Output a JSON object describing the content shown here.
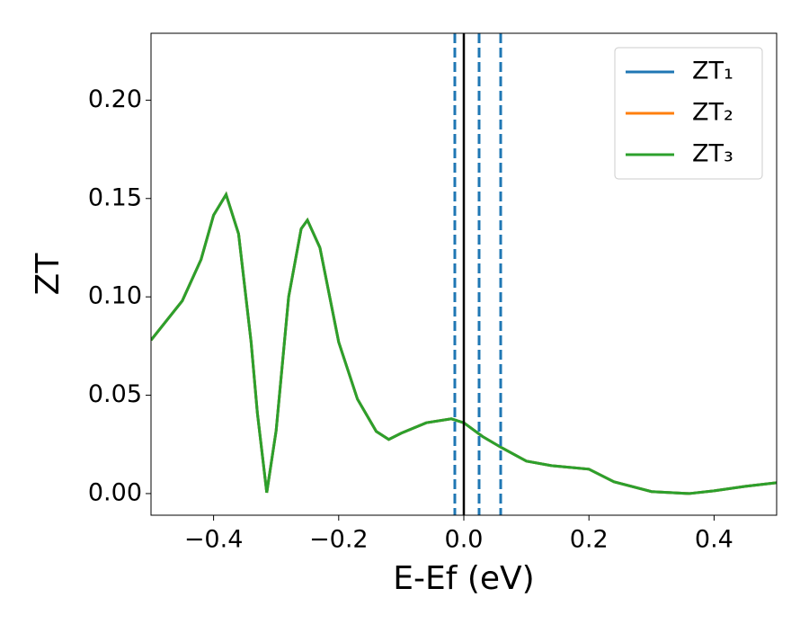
{
  "chart_data": {
    "type": "line",
    "xlabel": "E-Ef (eV)",
    "ylabel": "ZT",
    "x": [
      -0.5,
      -0.45,
      -0.42,
      -0.4,
      -0.38,
      -0.36,
      -0.34,
      -0.33,
      -0.315,
      -0.3,
      -0.28,
      -0.26,
      -0.25,
      -0.23,
      -0.2,
      -0.17,
      -0.14,
      -0.12,
      -0.1,
      -0.06,
      -0.02,
      0.0,
      0.03,
      0.06,
      0.1,
      0.14,
      0.2,
      0.24,
      0.3,
      0.36,
      0.4,
      0.45,
      0.5
    ],
    "series": [
      {
        "name": "ZT₁",
        "color": "#1f77b4",
        "values": [
          0.078,
          0.098,
          0.119,
          0.1415,
          0.152,
          0.132,
          0.077,
          0.041,
          0.0005,
          0.032,
          0.1,
          0.1346,
          0.139,
          0.125,
          0.077,
          0.048,
          0.0316,
          0.0275,
          0.0307,
          0.036,
          0.038,
          0.036,
          0.029,
          0.0234,
          0.0165,
          0.0142,
          0.0124,
          0.006,
          0.001,
          0.0,
          0.0014,
          0.0037,
          0.0055
        ]
      },
      {
        "name": "ZT₂",
        "color": "#ff7f0e",
        "values": [
          0.078,
          0.098,
          0.119,
          0.1415,
          0.152,
          0.132,
          0.077,
          0.041,
          0.0005,
          0.032,
          0.1,
          0.1346,
          0.139,
          0.125,
          0.077,
          0.048,
          0.0316,
          0.0275,
          0.0307,
          0.036,
          0.038,
          0.036,
          0.029,
          0.0234,
          0.0165,
          0.0142,
          0.0124,
          0.006,
          0.001,
          0.0,
          0.0014,
          0.0037,
          0.0055
        ]
      },
      {
        "name": "ZT₃",
        "color": "#2ca02c",
        "values": [
          0.078,
          0.098,
          0.119,
          0.1415,
          0.152,
          0.132,
          0.077,
          0.041,
          0.0005,
          0.032,
          0.1,
          0.1346,
          0.139,
          0.125,
          0.077,
          0.048,
          0.0316,
          0.0275,
          0.0307,
          0.036,
          0.038,
          0.036,
          0.029,
          0.0234,
          0.0165,
          0.0142,
          0.0124,
          0.006,
          0.001,
          0.0,
          0.0014,
          0.0037,
          0.0055
        ]
      }
    ],
    "vlines": [
      {
        "x": -0.0144,
        "color": "#1f77b4",
        "dashed": true
      },
      {
        "x": 0.0,
        "color": "#000000",
        "dashed": false
      },
      {
        "x": 0.0244,
        "color": "#1f77b4",
        "dashed": true
      },
      {
        "x": 0.0589,
        "color": "#1f77b4",
        "dashed": true
      }
    ],
    "xlim": [
      -0.5,
      0.5
    ],
    "xticks": [
      {
        "value": -0.4,
        "label": "−0.4"
      },
      {
        "value": -0.2,
        "label": "−0.2"
      },
      {
        "value": 0.0,
        "label": "0.0"
      },
      0.2,
      0.4
    ],
    "ylim": [
      -0.011,
      0.234
    ],
    "yticks": [
      {
        "value": 0,
        "label": "0.00"
      },
      0.05,
      {
        "value": 0.1,
        "label": "0.10"
      },
      0.15,
      {
        "value": 0.2,
        "label": "0.20"
      }
    ],
    "legend": "upper right"
  }
}
